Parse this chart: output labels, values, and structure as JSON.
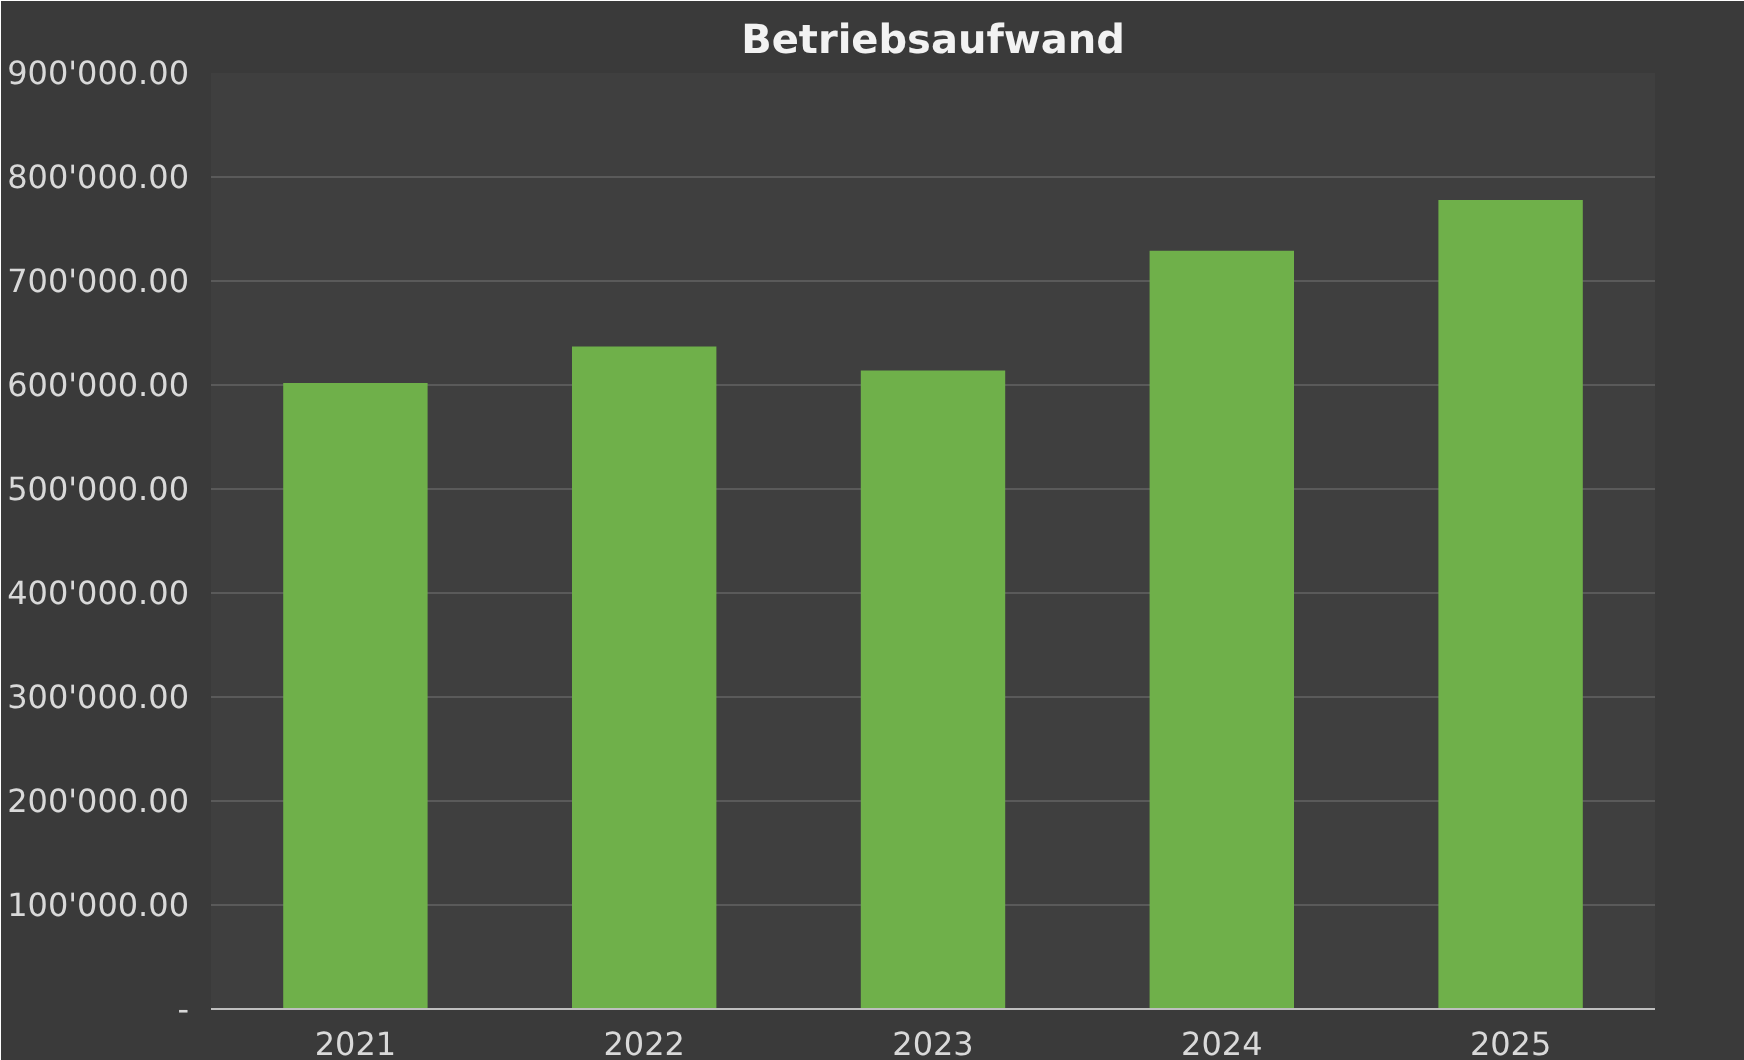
{
  "chart_data": {
    "type": "bar",
    "title": "Betriebsaufwand",
    "categories": [
      "2021",
      "2022",
      "2023",
      "2024",
      "2025"
    ],
    "values": [
      602000,
      637000,
      614000,
      729000,
      778000
    ],
    "color": "#6fb04a",
    "ylim": [
      0,
      900000
    ],
    "yticks": [
      {
        "value": 0,
        "label": "-"
      },
      {
        "value": 100000,
        "label": "100'000.00"
      },
      {
        "value": 200000,
        "label": "200'000.00"
      },
      {
        "value": 300000,
        "label": "300'000.00"
      },
      {
        "value": 400000,
        "label": "400'000.00"
      },
      {
        "value": 500000,
        "label": "500'000.00"
      },
      {
        "value": 600000,
        "label": "600'000.00"
      },
      {
        "value": 700000,
        "label": "700'000.00"
      },
      {
        "value": 800000,
        "label": "800'000.00"
      },
      {
        "value": 900000,
        "label": "900'000.00"
      }
    ],
    "grid": "y"
  }
}
